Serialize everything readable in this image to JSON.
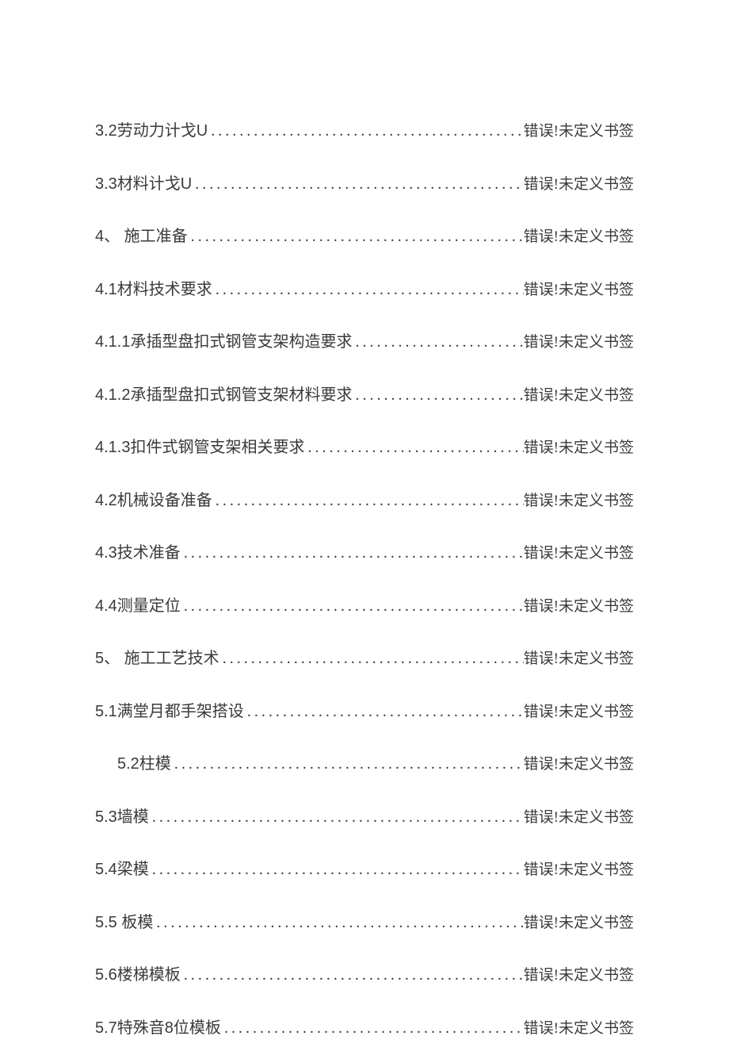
{
  "error_text": "错误!未定义书签",
  "dot_char": ".",
  "entries": [
    {
      "label": "3.2劳动力计戈U",
      "indent": 0
    },
    {
      "label": "3.3材料计戈U",
      "indent": 0
    },
    {
      "label": "4、 施工准备",
      "indent": 0
    },
    {
      "label": "4.1材料技术要求",
      "indent": 0
    },
    {
      "label": "4.1.1承插型盘扣式钢管支架构造要求",
      "indent": 0
    },
    {
      "label": "4.1.2承插型盘扣式钢管支架材料要求",
      "indent": 0
    },
    {
      "label": "4.1.3扣件式钢管支架相关要求",
      "indent": 0
    },
    {
      "label": "4.2机械设备准备",
      "indent": 0
    },
    {
      "label": "4.3技术准备",
      "indent": 0
    },
    {
      "label": "4.4测量定位",
      "indent": 0
    },
    {
      "label": "5、 施工工艺技术",
      "indent": 0
    },
    {
      "label": "5.1满堂月都手架搭设",
      "indent": 0
    },
    {
      "label": "5.2柱模",
      "indent": 1
    },
    {
      "label": "5.3墙模",
      "indent": 0
    },
    {
      "label": "5.4梁模",
      "indent": 0
    },
    {
      "label": "5.5 板模",
      "indent": 0
    },
    {
      "label": "5.6楼梯模板",
      "indent": 0
    },
    {
      "label": "5.7特殊音8位模板",
      "indent": 0
    }
  ]
}
